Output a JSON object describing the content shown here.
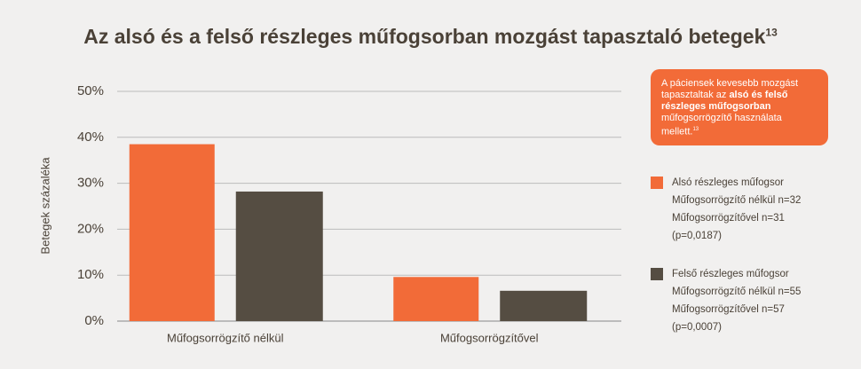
{
  "chart_data": {
    "type": "bar",
    "title": "Az alsó és a felső részleges műfogsorban mozgást tapasztaló betegek",
    "title_note": "13",
    "y_label": "Betegek százaléka",
    "categories": [
      "Műfogsorrögzítő nélkül",
      "Műfogsorrögzítővel"
    ],
    "series": [
      {
        "name": "Alsó részleges műfogsor",
        "color": "#f26b38",
        "values": [
          38.5,
          9.6
        ],
        "notes": [
          "Műfogsorrögzítő nélkül n=32",
          "Műfogsorrögzítővel n=31",
          "(p=0,0187)"
        ]
      },
      {
        "name": "Felső részleges műfogsor",
        "color": "#554d42",
        "values": [
          28.2,
          6.6
        ],
        "notes": [
          "Műfogsorrögzítő nélkül n=55",
          "Műfogsorrögzítővel n=57",
          "(p=0,0007)"
        ]
      }
    ],
    "ylim": [
      0,
      50
    ],
    "yticks": [
      {
        "value": 0,
        "label": "0%"
      },
      {
        "value": 10,
        "label": "10%"
      },
      {
        "value": 20,
        "label": "20%"
      },
      {
        "value": 30,
        "label": "30%"
      },
      {
        "value": 40,
        "label": "40%"
      },
      {
        "value": 50,
        "label": "50%"
      }
    ],
    "grid": true,
    "callout": {
      "text_before": "A páciensek kevesebb mozgást tapasztaltak az ",
      "text_bold": "alsó és felső részleges műfogsorban",
      "text_after": " műfogsorrögzítő használata mellett.",
      "note": "13"
    }
  }
}
